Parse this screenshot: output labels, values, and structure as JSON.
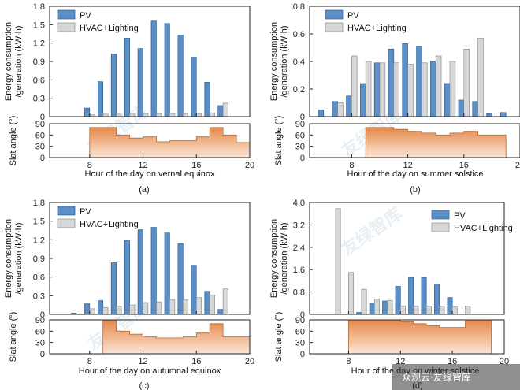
{
  "watermark": {
    "text": "友绿智库",
    "corner": "众观云·友绿智库"
  },
  "colors": {
    "pv": "#5b8fc8",
    "pv_edge": "#2f5f92",
    "hvac": "#d7d7d7",
    "hvac_edge": "#8e8e8e",
    "slat_top": "#e4894a",
    "slat_bottom": "#fbe6d6",
    "slat_edge": "#b06a38"
  },
  "chart_data": [
    {
      "type": "bar",
      "panel_label": "(a)",
      "xlabel": "Hour of the day on vernal equinox",
      "ylabel_line1": "Energy consumption",
      "ylabel_line2": "/generation (kW·h)",
      "slat_ylabel": "Slat angle (°)",
      "xlim": [
        5,
        20
      ],
      "xticks": [
        "8",
        "12",
        "16",
        "20"
      ],
      "ylim": [
        0,
        1.8
      ],
      "yticks": [
        "0",
        "0.3",
        "0.6",
        "0.9",
        "1.2",
        "1.5",
        "1.8"
      ],
      "slat_ylim": [
        0,
        90
      ],
      "slat_yticks": [
        "0",
        "30",
        "60",
        "90"
      ],
      "legend": [
        "PV",
        "HVAC+Lighting"
      ],
      "hours": [
        8,
        9,
        10,
        11,
        12,
        13,
        14,
        15,
        16,
        17,
        18
      ],
      "series": [
        {
          "name": "PV",
          "values": [
            0.14,
            0.57,
            1.02,
            1.28,
            1.11,
            1.56,
            1.52,
            1.33,
            0.97,
            0.56,
            0.18
          ]
        },
        {
          "name": "HVAC+Lighting",
          "values": [
            0.03,
            0.04,
            0.04,
            0.04,
            0.05,
            0.05,
            0.05,
            0.05,
            0.05,
            0.06,
            0.22
          ]
        }
      ],
      "slat_angle": {
        "hours": [
          8,
          9,
          10,
          11,
          12,
          13,
          14,
          15,
          16,
          17,
          18,
          19
        ],
        "values": [
          80,
          80,
          60,
          52,
          55,
          42,
          45,
          45,
          55,
          80,
          60,
          40
        ]
      }
    },
    {
      "type": "bar",
      "panel_label": "(b)",
      "xlabel": "Hour of the day on summer solstice",
      "ylabel_line1": "Energy consumption",
      "ylabel_line2": "/generation (kW·h)",
      "slat_ylabel": "Slat angle (°)",
      "xlim": [
        5,
        20
      ],
      "xticks": [
        "8",
        "12",
        "16",
        "20"
      ],
      "ylim": [
        0,
        0.8
      ],
      "yticks": [
        "0",
        "0.2",
        "0.4",
        "0.6",
        "0.8"
      ],
      "slat_ylim": [
        0,
        90
      ],
      "slat_yticks": [
        "0",
        "30",
        "60",
        "90"
      ],
      "legend": [
        "PV",
        "HVAC+Lighting"
      ],
      "hours": [
        6,
        7,
        8,
        9,
        10,
        11,
        12,
        13,
        14,
        15,
        16,
        17,
        18,
        19
      ],
      "series": [
        {
          "name": "PV",
          "values": [
            0.05,
            0.11,
            0.15,
            0.24,
            0.39,
            0.49,
            0.53,
            0.51,
            0.4,
            0.24,
            0.12,
            0.11,
            0.02,
            0.03
          ]
        },
        {
          "name": "HVAC+Lighting",
          "values": [
            0.0,
            0.1,
            0.44,
            0.4,
            0.39,
            0.39,
            0.38,
            0.39,
            0.44,
            0.4,
            0.49,
            0.57,
            0.0,
            0.0
          ]
        }
      ],
      "slat_angle": {
        "hours": [
          9,
          10,
          11,
          12,
          13,
          14,
          15,
          16,
          17,
          18
        ],
        "values": [
          80,
          80,
          75,
          70,
          65,
          60,
          65,
          70,
          60,
          60
        ]
      }
    },
    {
      "type": "bar",
      "panel_label": "(c)",
      "xlabel": "Hour of the day on autumnal equinox",
      "ylabel_line1": "Energy consumption",
      "ylabel_line2": "/generation (kW·h)",
      "slat_ylabel": "Slat angle (°)",
      "xlim": [
        5,
        20
      ],
      "xticks": [
        "8",
        "12",
        "16",
        "20"
      ],
      "ylim": [
        0,
        1.8
      ],
      "yticks": [
        "0",
        "0.3",
        "0.6",
        "0.9",
        "1.2",
        "1.5",
        "1.8"
      ],
      "slat_ylim": [
        0,
        90
      ],
      "slat_yticks": [
        "0",
        "30",
        "60",
        "90"
      ],
      "legend": [
        "PV",
        "HVAC+Lighting"
      ],
      "hours": [
        7,
        8,
        9,
        10,
        11,
        12,
        13,
        14,
        15,
        16,
        17,
        18
      ],
      "series": [
        {
          "name": "PV",
          "values": [
            0.02,
            0.17,
            0.22,
            0.83,
            1.19,
            1.36,
            1.4,
            1.31,
            1.14,
            0.79,
            0.37,
            0.08
          ]
        },
        {
          "name": "HVAC+Lighting",
          "values": [
            0.0,
            0.09,
            0.11,
            0.13,
            0.15,
            0.19,
            0.2,
            0.24,
            0.24,
            0.27,
            0.31,
            0.41
          ]
        }
      ],
      "slat_angle": {
        "hours": [
          9,
          10,
          11,
          12,
          13,
          14,
          15,
          16,
          17,
          18,
          19
        ],
        "values": [
          88,
          60,
          52,
          45,
          42,
          42,
          45,
          55,
          80,
          45,
          45
        ]
      }
    },
    {
      "type": "bar",
      "panel_label": "(d)",
      "xlabel": "Hour of the day on winter solstice",
      "ylabel_line1": "Energy consumption",
      "ylabel_line2": "/generation (kW·h)",
      "slat_ylabel": "Slat angle (°)",
      "xlim": [
        5,
        20
      ],
      "xticks": [
        "8",
        "12",
        "16",
        "20"
      ],
      "ylim": [
        0,
        4.0
      ],
      "yticks": [
        "0",
        "0.8",
        "1.6",
        "2.4",
        "3.2",
        "4.0"
      ],
      "slat_ylim": [
        0,
        90
      ],
      "slat_yticks": [
        "0",
        "30",
        "60",
        "90"
      ],
      "legend": [
        "PV",
        "HVAC+Lighting"
      ],
      "hours": [
        7,
        8,
        9,
        10,
        11,
        12,
        13,
        14,
        15,
        16,
        17,
        18
      ],
      "series": [
        {
          "name": "PV",
          "values": [
            0.0,
            0.0,
            0.07,
            0.4,
            0.48,
            1.0,
            1.32,
            1.32,
            1.08,
            0.6,
            0.0,
            0.0
          ]
        },
        {
          "name": "HVAC+Lighting",
          "values": [
            3.78,
            1.5,
            0.9,
            0.55,
            0.5,
            0.3,
            0.3,
            0.3,
            0.3,
            0.28,
            0.3,
            0.0
          ]
        }
      ],
      "slat_angle": {
        "hours": [
          8,
          9,
          10,
          11,
          12,
          13,
          14,
          15,
          16,
          17,
          18
        ],
        "values": [
          90,
          90,
          90,
          90,
          85,
          80,
          75,
          70,
          70,
          90,
          90
        ]
      }
    }
  ]
}
